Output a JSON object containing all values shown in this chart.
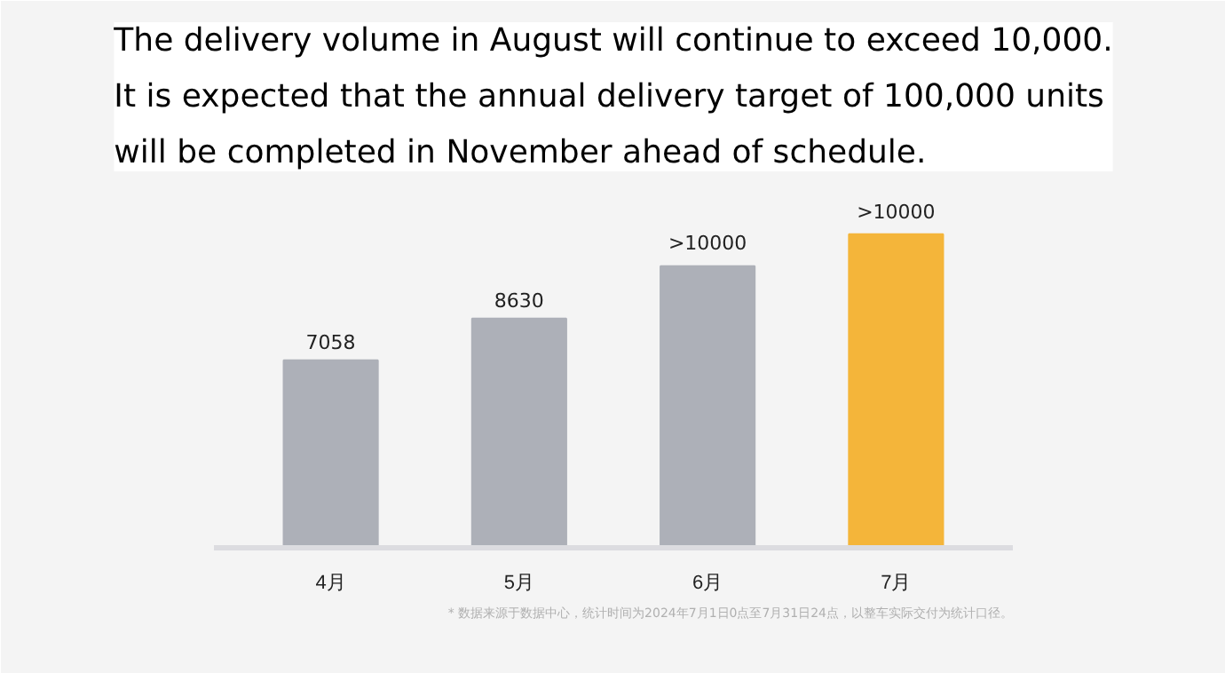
{
  "chart_data": {
    "type": "bar",
    "title": "The delivery volume in August will continue to exceed 10,000. It is expected that the annual delivery target of 100,000 units will be completed in November ahead of schedule.",
    "categories": [
      "4月",
      "5月",
      "6月",
      "7月"
    ],
    "values": [
      7058,
      8630,
      10600,
      11800
    ],
    "ylim": [
      0,
      13500
    ],
    "tick_labels": "x",
    "colors": [
      "#adb0b8",
      "#adb0b8",
      "#adb0b8",
      "#f4b53a"
    ],
    "value_labels": [
      "7058",
      "8630",
      ">10000",
      ">10000"
    ],
    "grid": false,
    "annotations": [
      "* 数据来源于数据中心，统计时间为2024年7月1日0点至7月31日24点，以整车实际交付为统计口径。"
    ]
  }
}
